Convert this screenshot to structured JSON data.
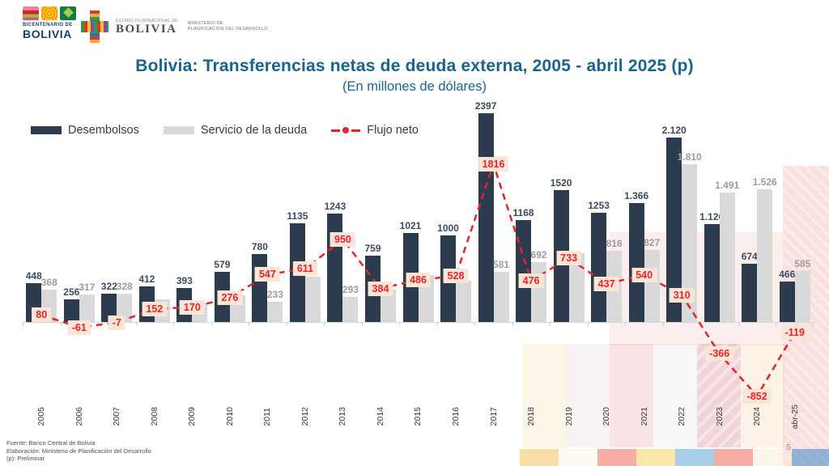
{
  "header": {
    "logo1": {
      "line1": "BICENTENARIO DE",
      "line2": "BOLIVIA"
    },
    "logo2": {
      "small_top": "ESTADO PLURINACIONAL DE",
      "name": "BOLIVIA",
      "ministry_line1": "MINISTERIO DE",
      "ministry_line2": "PLANIFICACIÓN DEL DESARROLLO"
    }
  },
  "chart_data": {
    "type": "bar+line",
    "title": "Bolivia: Transferencias netas de deuda externa, 2005 - abril 2025 (p)",
    "subtitle": "(En millones de dólares)",
    "unit": "millones de dólares",
    "legend_position": "top-left",
    "grid": false,
    "ylim": [
      -900,
      2450
    ],
    "categories": [
      "2005",
      "2006",
      "2007",
      "2008",
      "2009",
      "2010",
      "2011",
      "2012",
      "2013",
      "2014",
      "2015",
      "2016",
      "2017",
      "2018",
      "2019",
      "2020",
      "2021",
      "2022",
      "2023",
      "2024",
      "abr-25"
    ],
    "series": [
      {
        "name": "Desembolsos",
        "type": "bar",
        "color": "#2d3b4f",
        "label_color": "#3d4c61",
        "values": [
          448,
          256,
          322,
          412,
          393,
          579,
          780,
          1135,
          1243,
          759,
          1021,
          1000,
          2397,
          1168,
          1520,
          1253,
          1366,
          2120,
          1126,
          674,
          466
        ],
        "labels": [
          "448",
          "256",
          "322",
          "412",
          "393",
          "579",
          "780",
          "1135",
          "1243",
          "759",
          "1021",
          "1000",
          "2397",
          "1168",
          "1520",
          "1253",
          "1.366",
          "2.120",
          "1.126",
          "674",
          "466"
        ]
      },
      {
        "name": "Servicio de la deuda",
        "type": "bar",
        "color": "#d9d9d9",
        "label_color": "#9c9c9c",
        "values": [
          368,
          317,
          328,
          260,
          223,
          303,
          233,
          524,
          293,
          375,
          535,
          472,
          581,
          692,
          787,
          816,
          827,
          1810,
          1491,
          1526,
          585
        ],
        "labels": [
          "368",
          "317",
          "328",
          "",
          "",
          "",
          "233",
          "",
          "293",
          "",
          "",
          "",
          "581",
          "692",
          "",
          "816",
          "827",
          "1.810",
          "1.491",
          "1.526",
          "585"
        ]
      },
      {
        "name": "Flujo neto",
        "type": "line",
        "color": "#e8212e",
        "label_bg": "#fbe5d5",
        "values": [
          80,
          -61,
          -7,
          152,
          170,
          276,
          547,
          611,
          950,
          384,
          486,
          528,
          1816,
          476,
          733,
          437,
          540,
          310,
          -366,
          -852,
          -119
        ],
        "labels": [
          "80",
          "-61",
          "-7",
          "152",
          "170",
          "276",
          "547",
          "611",
          "950",
          "384",
          "486",
          "528",
          "1816",
          "476",
          "733",
          "437",
          "540",
          "310",
          "-366",
          "-852",
          "-119"
        ]
      }
    ]
  },
  "footer": {
    "source": "Fuente: Banco Central de Bolivia",
    "elaboration": "Elaboración: Ministerio de Planificación del Desarrollo",
    "note": "(p): Preliminar"
  },
  "page_number": "5"
}
